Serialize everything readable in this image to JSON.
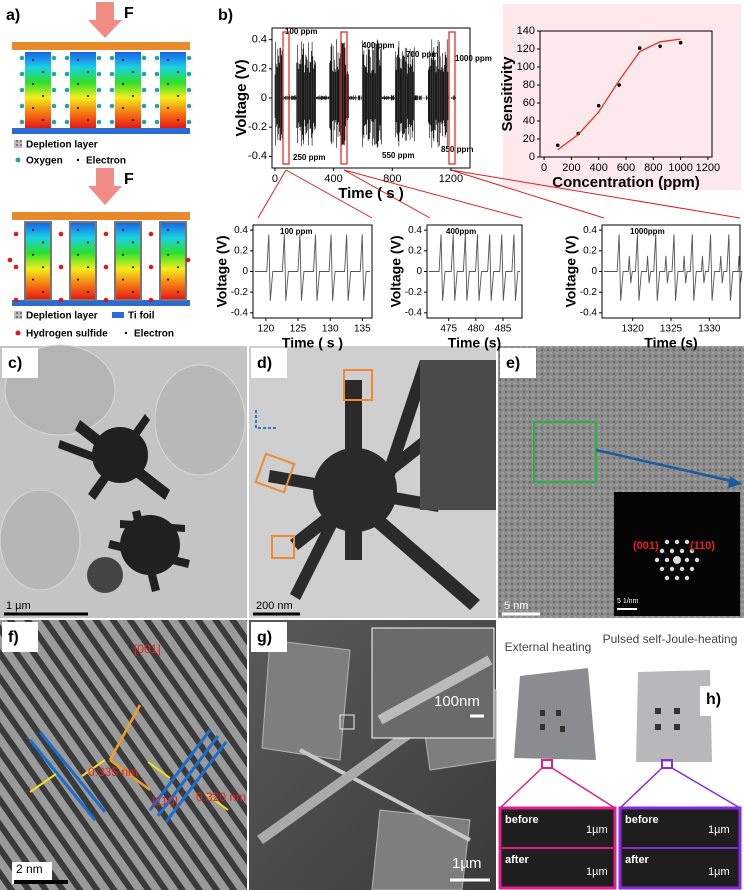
{
  "chart_data": [
    {
      "type": "line",
      "xlabel": "Time ( s )",
      "ylabel": "Voltage (V)",
      "xlim": [
        -20,
        1330
      ],
      "xticks": [
        0,
        400,
        800,
        1200
      ],
      "ylim": [
        -0.48,
        0.48
      ],
      "yticks": [
        -0.4,
        -0.2,
        0.0,
        0.2,
        0.4
      ],
      "annotations": [
        "100 ppm",
        "400 ppm",
        "700 ppm",
        "1000 ppm",
        "250 ppm",
        "550 ppm",
        "850 ppm"
      ]
    },
    {
      "type": "scatter",
      "xlabel": "Concentration (ppm)",
      "ylabel": "Sensitivity",
      "x": [
        100,
        250,
        400,
        550,
        700,
        850,
        1000
      ],
      "series": [
        {
          "color": "#000000",
          "values": [
            13,
            26,
            57,
            80,
            121,
            123,
            127
          ]
        },
        {
          "color": "#e8322e",
          "values": [
            8,
            25,
            50,
            85,
            117,
            128,
            131
          ],
          "line": true
        }
      ],
      "xlim": [
        -30,
        1230
      ],
      "xticks": [
        0,
        200,
        400,
        600,
        800,
        1000,
        1200
      ],
      "ylim": [
        0,
        140
      ],
      "yticks": [
        0,
        20,
        40,
        60,
        80,
        100,
        120,
        140
      ],
      "background": "#fde8ec"
    },
    {
      "type": "line",
      "xlabel": "Time ( s )",
      "ylabel": "Voltage (V)",
      "annotations": [
        "100 ppm"
      ],
      "xlim": [
        118,
        136.5
      ],
      "xticks": [
        120,
        125,
        130,
        135
      ],
      "ylim": [
        -0.45,
        0.45
      ],
      "yticks": [
        -0.4,
        -0.2,
        0.0,
        0.2,
        0.4
      ]
    },
    {
      "type": "line",
      "xlabel": "Time (s)",
      "ylabel": "Voltage (V)",
      "annotations": [
        "400ppm"
      ],
      "xlim": [
        471,
        488.5
      ],
      "xticks": [
        475,
        480,
        485
      ],
      "ylim": [
        -0.45,
        0.45
      ],
      "yticks": [
        -0.4,
        -0.2,
        0.0,
        0.2,
        0.4
      ]
    },
    {
      "type": "line",
      "xlabel": "Time (s)",
      "ylabel": "Voltage (V)",
      "annotations": [
        "1000ppm"
      ],
      "xlim": [
        1316,
        1334
      ],
      "xticks": [
        1320,
        1325,
        1330
      ],
      "ylim": [
        -0.45,
        0.45
      ],
      "yticks": [
        -0.4,
        -0.2,
        0.0,
        0.2,
        0.4
      ]
    }
  ],
  "panels": {
    "a": {
      "label": "a)",
      "force": "F",
      "legend1": [
        "Depletion layer",
        "Oxygen",
        "Electron"
      ],
      "legend2": [
        "Depletion layer",
        "Ti foil",
        "Hydrogen sulfide",
        "Electron"
      ]
    },
    "b": {
      "label": "b)"
    },
    "c": {
      "label": "c)",
      "scale": "1 µm"
    },
    "d": {
      "label": "d)",
      "scale": "200 nm"
    },
    "e": {
      "label": "e)",
      "scale": "5 nm",
      "spots": [
        "(001)",
        "(110)"
      ],
      "inset_scale": "5 1/nm"
    },
    "f": {
      "label": "f)",
      "directions": [
        "[001]",
        "[110]"
      ],
      "spacings": [
        "0.335 nm",
        "0.320 nm"
      ],
      "scale": "2 nm"
    },
    "g": {
      "label": "g)",
      "inset_scale": "100nm",
      "scale": "1µm"
    },
    "h": {
      "label": "h)",
      "left_title": "External heating",
      "right_title": "Pulsed self-Joule-heating",
      "rows": [
        "before",
        "after"
      ],
      "scale": "1µm"
    }
  }
}
